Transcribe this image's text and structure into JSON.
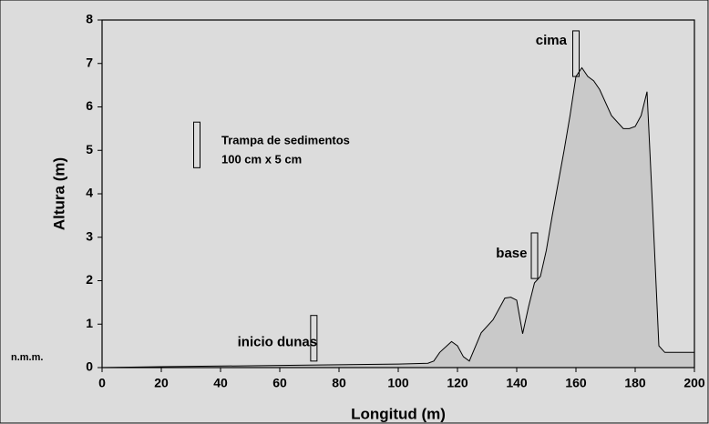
{
  "chart_data": {
    "type": "area",
    "xlabel": "Longitud (m)",
    "ylabel": "Altura (m)",
    "y0_label": "n.m.m.",
    "x": [
      0,
      20,
      60,
      100,
      110,
      112,
      114,
      118,
      120,
      122,
      124,
      128,
      132,
      136,
      138,
      140,
      142,
      144,
      146,
      148,
      150,
      152,
      156,
      158,
      160,
      162,
      164,
      166,
      168,
      172,
      176,
      178,
      180,
      182,
      184,
      186,
      188,
      190,
      200
    ],
    "values": [
      0,
      0.02,
      0.05,
      0.08,
      0.1,
      0.15,
      0.35,
      0.6,
      0.5,
      0.25,
      0.15,
      0.8,
      1.1,
      1.6,
      1.62,
      1.55,
      0.78,
      1.4,
      1.95,
      2.1,
      2.7,
      3.5,
      5.0,
      5.8,
      6.7,
      6.9,
      6.7,
      6.6,
      6.4,
      5.8,
      5.5,
      5.5,
      5.55,
      5.8,
      6.35,
      3.5,
      0.5,
      0.35,
      0.35
    ],
    "color": "#c9c9c9",
    "xlim": [
      0,
      200
    ],
    "ylim": [
      0,
      8
    ],
    "xticks": [
      0,
      20,
      40,
      60,
      80,
      100,
      120,
      140,
      160,
      180,
      200
    ],
    "yticks": [
      0,
      1,
      2,
      3,
      4,
      5,
      6,
      7,
      8
    ],
    "traps": [
      {
        "label": "inicio dunas",
        "x": 71.5,
        "y": [
          0.15,
          1.2
        ]
      },
      {
        "label": "base",
        "x": 146,
        "y": [
          2.05,
          3.1
        ]
      },
      {
        "label": "cima",
        "x": 160,
        "y": [
          6.7,
          7.75
        ]
      }
    ],
    "legend": {
      "x": 32,
      "y": [
        4.6,
        5.65
      ],
      "lines": [
        "Trampa de sedimentos",
        "100 cm x 5 cm"
      ]
    }
  }
}
